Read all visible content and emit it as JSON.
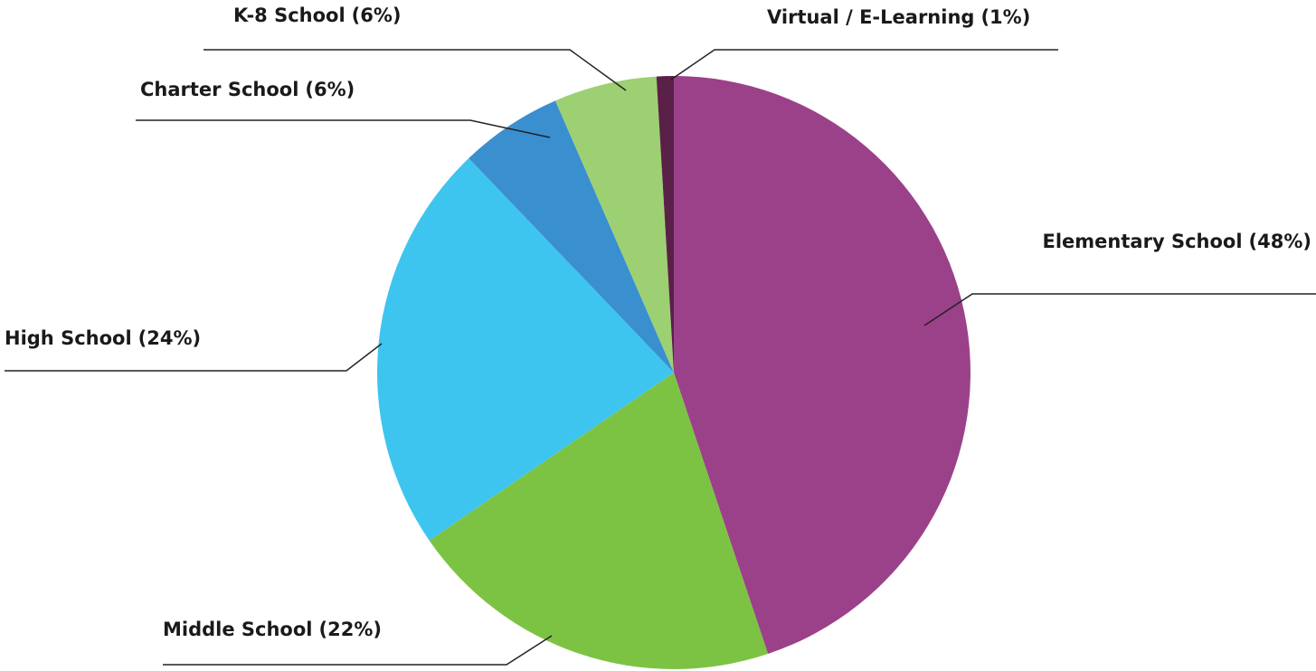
{
  "chart_data": {
    "type": "pie",
    "categories": [
      "Elementary School",
      "Middle School",
      "High School",
      "Charter School",
      "K-8 School",
      "Virtual / E-Learning"
    ],
    "values": [
      48,
      22,
      24,
      6,
      6,
      1
    ],
    "value_labels": [
      "(48%)",
      "(22%)",
      "(24%)",
      "(6%)",
      "(6%)",
      "(1%)"
    ],
    "colors": [
      "#9b4189",
      "#7dc343",
      "#3ec5ef",
      "#3a8fcf",
      "#9dd073",
      "#5b2047"
    ]
  }
}
